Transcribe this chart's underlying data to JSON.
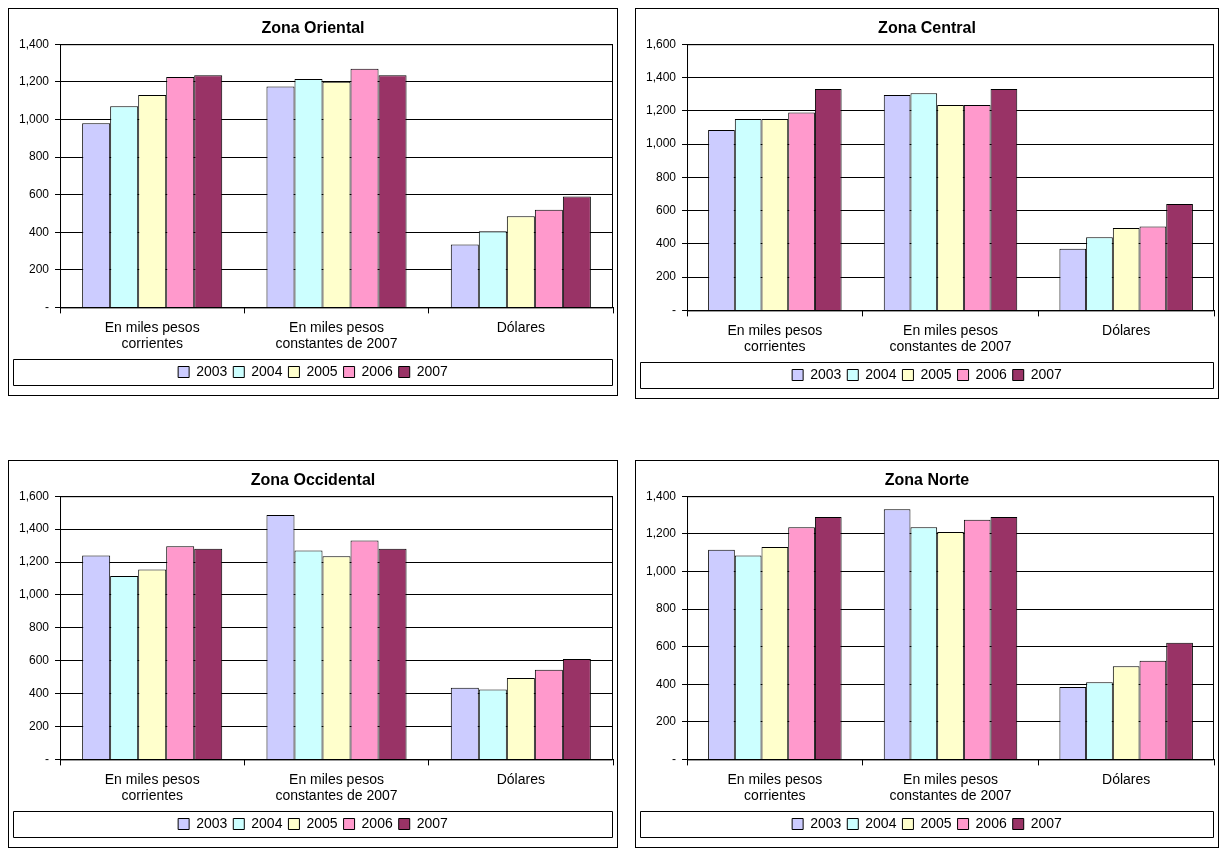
{
  "chart_data": [
    {
      "type": "bar",
      "title": "Zona Oriental",
      "categories": [
        "En miles pesos corrientes",
        "En miles pesos constantes de 2007",
        "Dólares"
      ],
      "series": [
        {
          "name": "2003",
          "color": "#ccccff",
          "values": [
            980,
            1175,
            335
          ]
        },
        {
          "name": "2004",
          "color": "#ccffff",
          "values": [
            1070,
            1215,
            405
          ]
        },
        {
          "name": "2005",
          "color": "#ffffcc",
          "values": [
            1130,
            1200,
            485
          ]
        },
        {
          "name": "2006",
          "color": "#ff99cc",
          "values": [
            1225,
            1270,
            520
          ]
        },
        {
          "name": "2007",
          "color": "#993366",
          "values": [
            1235,
            1235,
            590
          ]
        }
      ],
      "ylim": [
        0,
        1400
      ],
      "yticks": [
        {
          "value": 0,
          "label": "-"
        },
        200,
        400,
        600,
        800,
        {
          "value": 1000,
          "label": "1,000"
        },
        {
          "value": 1200,
          "label": "1,200"
        },
        {
          "value": 1400,
          "label": "1,400"
        }
      ],
      "grid": "y",
      "legend": "bottom"
    },
    {
      "type": "bar",
      "title": "Zona Central",
      "categories": [
        "En miles pesos corrientes",
        "En miles pesos constantes de 2007",
        "Dólares"
      ],
      "series": [
        {
          "name": "2003",
          "color": "#ccccff",
          "values": [
            1085,
            1295,
            370
          ]
        },
        {
          "name": "2004",
          "color": "#ccffff",
          "values": [
            1150,
            1305,
            440
          ]
        },
        {
          "name": "2005",
          "color": "#ffffcc",
          "values": [
            1150,
            1235,
            495
          ]
        },
        {
          "name": "2006",
          "color": "#ff99cc",
          "values": [
            1190,
            1235,
            505
          ]
        },
        {
          "name": "2007",
          "color": "#993366",
          "values": [
            1330,
            1330,
            640
          ]
        }
      ],
      "ylim": [
        0,
        1600
      ],
      "yticks": [
        {
          "value": 0,
          "label": "-"
        },
        200,
        400,
        600,
        800,
        {
          "value": 1000,
          "label": "1,000"
        },
        {
          "value": 1200,
          "label": "1,200"
        },
        {
          "value": 1400,
          "label": "1,400"
        },
        {
          "value": 1600,
          "label": "1,600"
        }
      ],
      "grid": "y",
      "legend": "bottom"
    },
    {
      "type": "bar",
      "title": "Zona Occidental",
      "categories": [
        "En miles pesos corrientes",
        "En miles pesos constantes de 2007",
        "Dólares"
      ],
      "series": [
        {
          "name": "2003",
          "color": "#ccccff",
          "values": [
            1240,
            1485,
            435
          ]
        },
        {
          "name": "2004",
          "color": "#ccffff",
          "values": [
            1115,
            1270,
            425
          ]
        },
        {
          "name": "2005",
          "color": "#ffffcc",
          "values": [
            1155,
            1235,
            495
          ]
        },
        {
          "name": "2006",
          "color": "#ff99cc",
          "values": [
            1295,
            1330,
            545
          ]
        },
        {
          "name": "2007",
          "color": "#993366",
          "values": [
            1280,
            1280,
            610
          ]
        }
      ],
      "ylim": [
        0,
        1600
      ],
      "yticks": [
        {
          "value": 0,
          "label": "-"
        },
        200,
        400,
        600,
        800,
        {
          "value": 1000,
          "label": "1,000"
        },
        {
          "value": 1200,
          "label": "1,200"
        },
        {
          "value": 1400,
          "label": "1,400"
        },
        {
          "value": 1600,
          "label": "1,600"
        }
      ],
      "grid": "y",
      "legend": "bottom"
    },
    {
      "type": "bar",
      "title": "Zona Norte",
      "categories": [
        "En miles pesos corrientes",
        "En miles pesos constantes de 2007",
        "Dólares"
      ],
      "series": [
        {
          "name": "2003",
          "color": "#ccccff",
          "values": [
            1115,
            1330,
            385
          ]
        },
        {
          "name": "2004",
          "color": "#ccffff",
          "values": [
            1085,
            1235,
            410
          ]
        },
        {
          "name": "2005",
          "color": "#ffffcc",
          "values": [
            1130,
            1210,
            495
          ]
        },
        {
          "name": "2006",
          "color": "#ff99cc",
          "values": [
            1235,
            1275,
            525
          ]
        },
        {
          "name": "2007",
          "color": "#993366",
          "values": [
            1290,
            1290,
            620
          ]
        }
      ],
      "ylim": [
        0,
        1400
      ],
      "yticks": [
        {
          "value": 0,
          "label": "-"
        },
        200,
        400,
        600,
        800,
        {
          "value": 1000,
          "label": "1,000"
        },
        {
          "value": 1200,
          "label": "1,200"
        },
        {
          "value": 1400,
          "label": "1,400"
        }
      ],
      "grid": "y",
      "legend": "bottom"
    }
  ]
}
